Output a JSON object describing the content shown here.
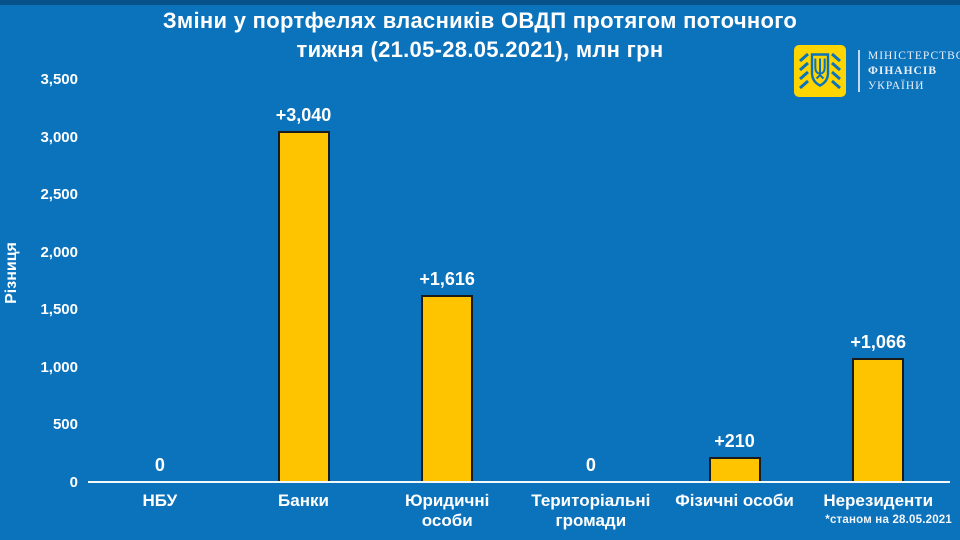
{
  "header": {
    "title_line1": "Зміни у портфелях власників ОВДП протягом поточного",
    "title_line2": "тижня (21.05-28.05.2021), млн грн"
  },
  "logo": {
    "org_line1": "МІНІСТЕРСТВО",
    "org_line2": "ФІНАНСІВ",
    "org_line3": "УКРАЇНИ",
    "emblem_icon": "trident-emblem",
    "square_color": "#FFD500"
  },
  "colors": {
    "background": "#0B72BC",
    "bar_fill": "#FFC400",
    "bar_border": "#1B1B1B",
    "text": "#FFFFFF"
  },
  "chart_data": {
    "type": "bar",
    "title": "Зміни у портфелях власників ОВДП протягом поточного тижня (21.05-28.05.2021), млн грн",
    "categories": [
      "НБУ",
      "Банки",
      "Юридичні особи",
      "Територіальні громади",
      "Фізичні особи",
      "Нерезиденти"
    ],
    "xtick_labels": [
      "НБУ",
      "Банки",
      "Юридичні\nособи",
      "Територіальні\nгромади",
      "Фізичні особи",
      "Нерезиденти"
    ],
    "values": [
      0,
      3040,
      1616,
      0,
      210,
      1066
    ],
    "value_labels": [
      "0",
      "+3,040",
      "+1,616",
      "0",
      "+210",
      "+1,066"
    ],
    "xlabel": "",
    "ylabel": "Різниця",
    "ylim": [
      0,
      3500
    ],
    "yticks": [
      {
        "value": 3500,
        "label": "3,500"
      },
      {
        "value": 3000,
        "label": "3,000"
      },
      {
        "value": 2500,
        "label": "2,500"
      },
      {
        "value": 2000,
        "label": "2,000"
      },
      {
        "value": 1500,
        "label": "1,500"
      },
      {
        "value": 1000,
        "label": "1,000"
      },
      {
        "value": 500,
        "label": "500"
      },
      {
        "value": 0,
        "label": "0"
      }
    ],
    "grid": false,
    "legend": false,
    "bar_color": "#FFC400"
  },
  "footnote": "*станом на 28.05.2021"
}
